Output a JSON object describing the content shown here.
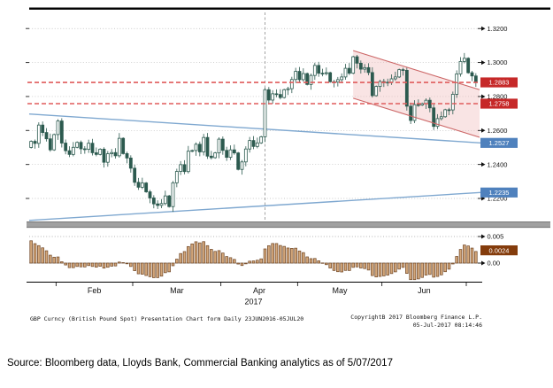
{
  "footer": {
    "left_text": "GBP Curncy (British Pound Spot) Presentation Chart form  Daily 23JUN2016-05JUL20",
    "copyright": "CopyrightB 2017 Bloomberg Finance L.P.",
    "timestamp": "05-Jul-2017 08:14:46"
  },
  "source_note": "Source: Bloomberg data, Lloyds Bank, Commercial Banking analytics as of 5/07/2017",
  "chart_data": {
    "type": "candlestick",
    "title": "GBP Curncy (British Pound Spot)",
    "x_axis": {
      "year_label": "2017",
      "month_labels": [
        "Feb",
        "Mar",
        "Apr",
        "May",
        "Jun"
      ],
      "month_start_indices": [
        7,
        27,
        50,
        70,
        92,
        114
      ]
    },
    "price_axis": {
      "side": "right",
      "tick_labels": [
        "1.3200",
        "1.3000",
        "1.2800",
        "1.2600",
        "1.2400",
        "1.2200"
      ],
      "tick_values": [
        1.32,
        1.3,
        1.28,
        1.26,
        1.24,
        1.22
      ],
      "range": [
        1.2075,
        1.3295
      ]
    },
    "level_badges": [
      {
        "label": "1.2883",
        "value": 1.2883,
        "background": "#c62828",
        "text_color": "#ffffff"
      },
      {
        "label": "1.2758",
        "value": 1.2758,
        "background": "#c62828",
        "text_color": "#ffffff"
      },
      {
        "label": "1.2527",
        "value": 1.2527,
        "background": "#4f81bd",
        "text_color": "#ffffff"
      },
      {
        "label": "1.2235",
        "value": 1.2235,
        "background": "#4f81bd",
        "text_color": "#ffffff"
      }
    ],
    "dashed_levels": {
      "values": [
        1.2883,
        1.2758
      ],
      "color": "#e05c5c"
    },
    "event_vline_index": 61,
    "trendlines": [
      {
        "name": "descending-resistance",
        "start_value": 1.2697,
        "end_value": 1.2527,
        "color": "#7fa8d0"
      },
      {
        "name": "ascending-support",
        "start_value": 1.2071,
        "end_value": 1.2235,
        "color": "#7fa8d0"
      }
    ],
    "channel": {
      "name": "bear-flag-channel",
      "start_index": 84,
      "end_index": 117,
      "top_start": 1.307,
      "top_end": 1.284,
      "bottom_start": 1.279,
      "bottom_end": 1.256,
      "fill": "#f2c4c4",
      "fill_opacity": 0.45,
      "stroke": "#cc6666"
    },
    "candles": {
      "open_rule": "previous_close",
      "first_open": 1.25,
      "closes": [
        1.2536,
        1.2524,
        1.2632,
        1.2588,
        1.2551,
        1.2486,
        1.2576,
        1.2656,
        1.2526,
        1.2481,
        1.2459,
        1.2501,
        1.253,
        1.2492,
        1.2489,
        1.2525,
        1.2469,
        1.2459,
        1.249,
        1.2413,
        1.2463,
        1.247,
        1.2451,
        1.2554,
        1.2464,
        1.2438,
        1.2378,
        1.2295,
        1.2266,
        1.2291,
        1.2239,
        1.2203,
        1.2168,
        1.2159,
        1.217,
        1.2215,
        1.2152,
        1.2292,
        1.2359,
        1.2399,
        1.2358,
        1.2478,
        1.2482,
        1.2519,
        1.2474,
        1.2559,
        1.2449,
        1.244,
        1.2468,
        1.2549,
        1.2483,
        1.2442,
        1.2486,
        1.2468,
        1.2371,
        1.2415,
        1.2491,
        1.2541,
        1.2506,
        1.2527,
        1.2563,
        1.284,
        1.2779,
        1.2816,
        1.2812,
        1.2794,
        1.284,
        1.2846,
        1.29,
        1.2948,
        1.2899,
        1.2935,
        1.2871,
        1.2924,
        1.2983,
        1.2937,
        1.2935,
        1.294,
        1.2887,
        1.2885,
        1.2899,
        1.2915,
        1.2966,
        1.2937,
        1.3034,
        1.2996,
        1.2961,
        1.297,
        1.2941,
        1.2805,
        1.2859,
        1.2888,
        1.2882,
        1.2884,
        1.2904,
        1.2915,
        1.2958,
        1.2954,
        1.2743,
        1.2659,
        1.2752,
        1.275,
        1.2758,
        1.2778,
        1.2733,
        1.2624,
        1.267,
        1.2681,
        1.2722,
        1.2721,
        1.2813,
        1.2933,
        1.3006,
        1.3025,
        1.294,
        1.2921,
        1.2883
      ]
    },
    "colors": {
      "up_fill": "#ffffff",
      "down_fill": "#2c5a4f",
      "stroke": "#2c5a4f",
      "grid": "#b8b8b8",
      "separator": "#a0a0a0"
    },
    "lower_panel": {
      "type": "bar",
      "indicator": "macd-histogram",
      "tick_labels": [
        "0.005",
        "0.00"
      ],
      "tick_values": [
        0.005,
        0.0
      ],
      "badge": {
        "label": "0.0024",
        "value": 0.0024,
        "background": "#843c0c",
        "text_color": "#ffffff"
      },
      "range": [
        -0.0035,
        0.006
      ],
      "bar_fill": "#d2a679",
      "bar_stroke": "#6e4423"
    }
  }
}
